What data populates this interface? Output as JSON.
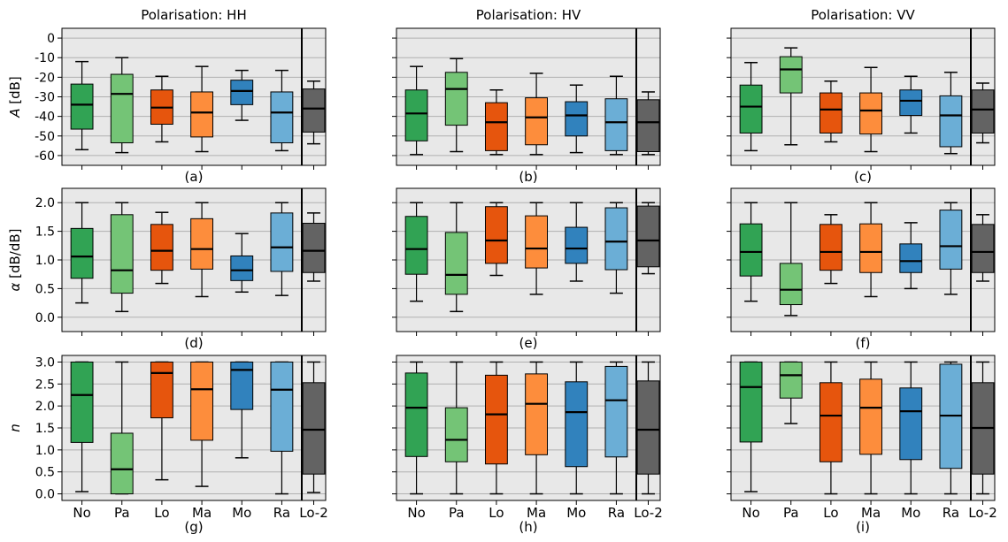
{
  "figure": {
    "categories": [
      "No",
      "Pa",
      "Lo",
      "Ma",
      "Mo",
      "Ra",
      "Lo-2"
    ],
    "colors": [
      "#31a354",
      "#74c476",
      "#e6550d",
      "#fd8d3c",
      "#3182bd",
      "#6baed6",
      "#636363"
    ],
    "panel_background": "#e8e8e8",
    "grid_color": "#b0b0b0",
    "median_color": "#000000",
    "column_titles": [
      "Polarisation: HH",
      "Polarisation: HV",
      "Polarisation: VV"
    ],
    "row_labels": [
      "A [dB]",
      "α [dB/dB]",
      "n"
    ],
    "row_label_parts": [
      {
        "sym": "A",
        "rest": " [dB]"
      },
      {
        "sym": "α",
        "rest": " [dB/dB]"
      },
      {
        "sym": "n",
        "rest": ""
      }
    ],
    "row_ylim": [
      [
        -65,
        5
      ],
      [
        -0.25,
        2.25
      ],
      [
        -0.15,
        3.15
      ]
    ],
    "row_ticks": [
      [
        "0",
        "-10",
        "-20",
        "-30",
        "-40",
        "-50",
        "-60"
      ],
      [
        "2.0",
        "1.5",
        "1.0",
        "0.5",
        "0.0"
      ],
      [
        "3.0",
        "2.5",
        "2.0",
        "1.5",
        "1.0",
        "0.5",
        "0.0"
      ]
    ],
    "row_tick_values": [
      [
        0,
        -10,
        -20,
        -30,
        -40,
        -50,
        -60
      ],
      [
        2.0,
        1.5,
        1.0,
        0.5,
        0.0
      ],
      [
        3.0,
        2.5,
        2.0,
        1.5,
        1.0,
        0.5,
        0.0
      ]
    ]
  },
  "chart_data": [
    {
      "type": "boxplot",
      "label": "(a)",
      "title": "Polarisation: HH",
      "ylabel": "A [dB]",
      "ylim": [
        -65,
        5
      ],
      "grid": true,
      "separator_before": "Lo-2",
      "categories": [
        "No",
        "Pa",
        "Lo",
        "Ma",
        "Mo",
        "Ra",
        "Lo-2"
      ],
      "boxes": [
        {
          "whislo": -57,
          "q1": -46.5,
          "med": -34,
          "q3": -23.5,
          "whishi": -12
        },
        {
          "whislo": -58.5,
          "q1": -53.5,
          "med": -28.5,
          "q3": -18.5,
          "whishi": -10
        },
        {
          "whislo": -53,
          "q1": -44,
          "med": -35.5,
          "q3": -26.5,
          "whishi": -19.5
        },
        {
          "whislo": -58,
          "q1": -50.5,
          "med": -38,
          "q3": -27.5,
          "whishi": -14.5
        },
        {
          "whislo": -42,
          "q1": -34,
          "med": -27,
          "q3": -21.5,
          "whishi": -16.5
        },
        {
          "whislo": -57.5,
          "q1": -53.5,
          "med": -38,
          "q3": -27.5,
          "whishi": -16.5
        },
        {
          "whislo": -54,
          "q1": -48,
          "med": -36,
          "q3": -26,
          "whishi": -22
        }
      ]
    },
    {
      "type": "boxplot",
      "label": "(b)",
      "title": "Polarisation: HV",
      "ylim": [
        -65,
        5
      ],
      "grid": true,
      "separator_before": "Lo-2",
      "categories": [
        "No",
        "Pa",
        "Lo",
        "Ma",
        "Mo",
        "Ra",
        "Lo-2"
      ],
      "boxes": [
        {
          "whislo": -59.5,
          "q1": -52.5,
          "med": -38.5,
          "q3": -26.5,
          "whishi": -14.5
        },
        {
          "whislo": -58,
          "q1": -44.5,
          "med": -26,
          "q3": -17.5,
          "whishi": -10.5
        },
        {
          "whislo": -59.5,
          "q1": -57.5,
          "med": -43,
          "q3": -33,
          "whishi": -26.5
        },
        {
          "whislo": -59.5,
          "q1": -54.5,
          "med": -40.5,
          "q3": -30.5,
          "whishi": -18
        },
        {
          "whislo": -58.5,
          "q1": -50,
          "med": -39.5,
          "q3": -32.5,
          "whishi": -24
        },
        {
          "whislo": -59.5,
          "q1": -57.5,
          "med": -43,
          "q3": -31,
          "whishi": -19.5
        },
        {
          "whislo": -59.5,
          "q1": -58,
          "med": -43,
          "q3": -31.5,
          "whishi": -27.5
        }
      ]
    },
    {
      "type": "boxplot",
      "label": "(c)",
      "title": "Polarisation: VV",
      "ylim": [
        -65,
        5
      ],
      "grid": true,
      "separator_before": "Lo-2",
      "categories": [
        "No",
        "Pa",
        "Lo",
        "Ma",
        "Mo",
        "Ra",
        "Lo-2"
      ],
      "boxes": [
        {
          "whislo": -57.5,
          "q1": -48.5,
          "med": -35,
          "q3": -24,
          "whishi": -12.5
        },
        {
          "whislo": -54.5,
          "q1": -28,
          "med": -16,
          "q3": -9.5,
          "whishi": -5
        },
        {
          "whislo": -53,
          "q1": -48.5,
          "med": -36.5,
          "q3": -28,
          "whishi": -22
        },
        {
          "whislo": -58,
          "q1": -49,
          "med": -37,
          "q3": -28,
          "whishi": -15
        },
        {
          "whislo": -48.5,
          "q1": -39.5,
          "med": -32,
          "q3": -26.5,
          "whishi": -19.5
        },
        {
          "whislo": -59,
          "q1": -55.5,
          "med": -39.5,
          "q3": -29.5,
          "whishi": -17.5
        },
        {
          "whislo": -53.5,
          "q1": -48.5,
          "med": -36.5,
          "q3": -26.5,
          "whishi": -23
        }
      ]
    },
    {
      "type": "boxplot",
      "label": "(d)",
      "ylabel": "α [dB/dB]",
      "ylim": [
        -0.25,
        2.25
      ],
      "grid": true,
      "separator_before": "Lo-2",
      "categories": [
        "No",
        "Pa",
        "Lo",
        "Ma",
        "Mo",
        "Ra",
        "Lo-2"
      ],
      "boxes": [
        {
          "whislo": 0.25,
          "q1": 0.68,
          "med": 1.06,
          "q3": 1.55,
          "whishi": 2.0
        },
        {
          "whislo": 0.1,
          "q1": 0.42,
          "med": 0.82,
          "q3": 1.79,
          "whishi": 2.0
        },
        {
          "whislo": 0.59,
          "q1": 0.82,
          "med": 1.16,
          "q3": 1.62,
          "whishi": 1.83
        },
        {
          "whislo": 0.36,
          "q1": 0.84,
          "med": 1.19,
          "q3": 1.72,
          "whishi": 2.0
        },
        {
          "whislo": 0.44,
          "q1": 0.64,
          "med": 0.82,
          "q3": 1.07,
          "whishi": 1.46
        },
        {
          "whislo": 0.38,
          "q1": 0.8,
          "med": 1.22,
          "q3": 1.82,
          "whishi": 2.0
        },
        {
          "whislo": 0.63,
          "q1": 0.78,
          "med": 1.16,
          "q3": 1.64,
          "whishi": 1.82
        }
      ]
    },
    {
      "type": "boxplot",
      "label": "(e)",
      "ylim": [
        -0.25,
        2.25
      ],
      "grid": true,
      "separator_before": "Lo-2",
      "categories": [
        "No",
        "Pa",
        "Lo",
        "Ma",
        "Mo",
        "Ra",
        "Lo-2"
      ],
      "boxes": [
        {
          "whislo": 0.28,
          "q1": 0.75,
          "med": 1.19,
          "q3": 1.76,
          "whishi": 2.0
        },
        {
          "whislo": 0.1,
          "q1": 0.4,
          "med": 0.74,
          "q3": 1.48,
          "whishi": 2.0
        },
        {
          "whislo": 0.73,
          "q1": 0.94,
          "med": 1.34,
          "q3": 1.93,
          "whishi": 2.0
        },
        {
          "whislo": 0.4,
          "q1": 0.86,
          "med": 1.2,
          "q3": 1.77,
          "whishi": 2.0
        },
        {
          "whislo": 0.63,
          "q1": 0.94,
          "med": 1.2,
          "q3": 1.57,
          "whishi": 2.0
        },
        {
          "whislo": 0.42,
          "q1": 0.83,
          "med": 1.32,
          "q3": 1.91,
          "whishi": 2.0
        },
        {
          "whislo": 0.76,
          "q1": 0.88,
          "med": 1.34,
          "q3": 1.94,
          "whishi": 2.0
        }
      ]
    },
    {
      "type": "boxplot",
      "label": "(f)",
      "ylim": [
        -0.25,
        2.25
      ],
      "grid": true,
      "separator_before": "Lo-2",
      "categories": [
        "No",
        "Pa",
        "Lo",
        "Ma",
        "Mo",
        "Ra",
        "Lo-2"
      ],
      "boxes": [
        {
          "whislo": 0.28,
          "q1": 0.72,
          "med": 1.14,
          "q3": 1.63,
          "whishi": 2.0
        },
        {
          "whislo": 0.03,
          "q1": 0.22,
          "med": 0.48,
          "q3": 0.94,
          "whishi": 2.0
        },
        {
          "whislo": 0.59,
          "q1": 0.82,
          "med": 1.14,
          "q3": 1.62,
          "whishi": 1.79
        },
        {
          "whislo": 0.36,
          "q1": 0.78,
          "med": 1.14,
          "q3": 1.63,
          "whishi": 2.0
        },
        {
          "whislo": 0.5,
          "q1": 0.78,
          "med": 0.98,
          "q3": 1.28,
          "whishi": 1.65
        },
        {
          "whislo": 0.4,
          "q1": 0.84,
          "med": 1.24,
          "q3": 1.87,
          "whishi": 2.0
        },
        {
          "whislo": 0.63,
          "q1": 0.78,
          "med": 1.14,
          "q3": 1.62,
          "whishi": 1.79
        }
      ]
    },
    {
      "type": "boxplot",
      "label": "(g)",
      "ylabel": "n",
      "ylim": [
        -0.15,
        3.15
      ],
      "grid": true,
      "separator_before": "Lo-2",
      "categories": [
        "No",
        "Pa",
        "Lo",
        "Ma",
        "Mo",
        "Ra",
        "Lo-2"
      ],
      "boxes": [
        {
          "whislo": 0.05,
          "q1": 1.17,
          "med": 2.25,
          "q3": 3.0,
          "whishi": 3.0
        },
        {
          "whislo": 0.0,
          "q1": 0.0,
          "med": 0.56,
          "q3": 1.38,
          "whishi": 3.0
        },
        {
          "whislo": 0.32,
          "q1": 1.73,
          "med": 2.75,
          "q3": 3.0,
          "whishi": 3.0
        },
        {
          "whislo": 0.17,
          "q1": 1.22,
          "med": 2.38,
          "q3": 3.0,
          "whishi": 3.0
        },
        {
          "whislo": 0.82,
          "q1": 1.92,
          "med": 2.82,
          "q3": 3.0,
          "whishi": 3.0
        },
        {
          "whislo": 0.0,
          "q1": 0.97,
          "med": 2.37,
          "q3": 3.0,
          "whishi": 3.0
        },
        {
          "whislo": 0.03,
          "q1": 0.45,
          "med": 1.46,
          "q3": 2.53,
          "whishi": 3.0
        }
      ]
    },
    {
      "type": "boxplot",
      "label": "(h)",
      "ylim": [
        -0.15,
        3.15
      ],
      "grid": true,
      "separator_before": "Lo-2",
      "categories": [
        "No",
        "Pa",
        "Lo",
        "Ma",
        "Mo",
        "Ra",
        "Lo-2"
      ],
      "boxes": [
        {
          "whislo": 0.0,
          "q1": 0.85,
          "med": 1.96,
          "q3": 2.75,
          "whishi": 3.0
        },
        {
          "whislo": 0.0,
          "q1": 0.73,
          "med": 1.23,
          "q3": 1.96,
          "whishi": 3.0
        },
        {
          "whislo": 0.0,
          "q1": 0.68,
          "med": 1.81,
          "q3": 2.7,
          "whishi": 3.0
        },
        {
          "whislo": 0.0,
          "q1": 0.89,
          "med": 2.05,
          "q3": 2.73,
          "whishi": 3.0
        },
        {
          "whislo": 0.0,
          "q1": 0.62,
          "med": 1.86,
          "q3": 2.55,
          "whishi": 3.0
        },
        {
          "whislo": 0.0,
          "q1": 0.84,
          "med": 2.13,
          "q3": 2.9,
          "whishi": 3.0
        },
        {
          "whislo": 0.0,
          "q1": 0.45,
          "med": 1.46,
          "q3": 2.57,
          "whishi": 3.0
        }
      ]
    },
    {
      "type": "boxplot",
      "label": "(i)",
      "ylim": [
        -0.15,
        3.15
      ],
      "grid": true,
      "separator_before": "Lo-2",
      "categories": [
        "No",
        "Pa",
        "Lo",
        "Ma",
        "Mo",
        "Ra",
        "Lo-2"
      ],
      "boxes": [
        {
          "whislo": 0.05,
          "q1": 1.18,
          "med": 2.43,
          "q3": 3.0,
          "whishi": 3.0
        },
        {
          "whislo": 1.6,
          "q1": 2.18,
          "med": 2.7,
          "q3": 3.0,
          "whishi": 3.0
        },
        {
          "whislo": 0.0,
          "q1": 0.73,
          "med": 1.78,
          "q3": 2.53,
          "whishi": 3.0
        },
        {
          "whislo": 0.0,
          "q1": 0.9,
          "med": 1.96,
          "q3": 2.61,
          "whishi": 3.0
        },
        {
          "whislo": 0.0,
          "q1": 0.78,
          "med": 1.88,
          "q3": 2.41,
          "whishi": 3.0
        },
        {
          "whislo": 0.0,
          "q1": 0.58,
          "med": 1.78,
          "q3": 2.95,
          "whishi": 3.0
        },
        {
          "whislo": 0.0,
          "q1": 0.45,
          "med": 1.5,
          "q3": 2.53,
          "whishi": 3.0
        }
      ]
    }
  ]
}
